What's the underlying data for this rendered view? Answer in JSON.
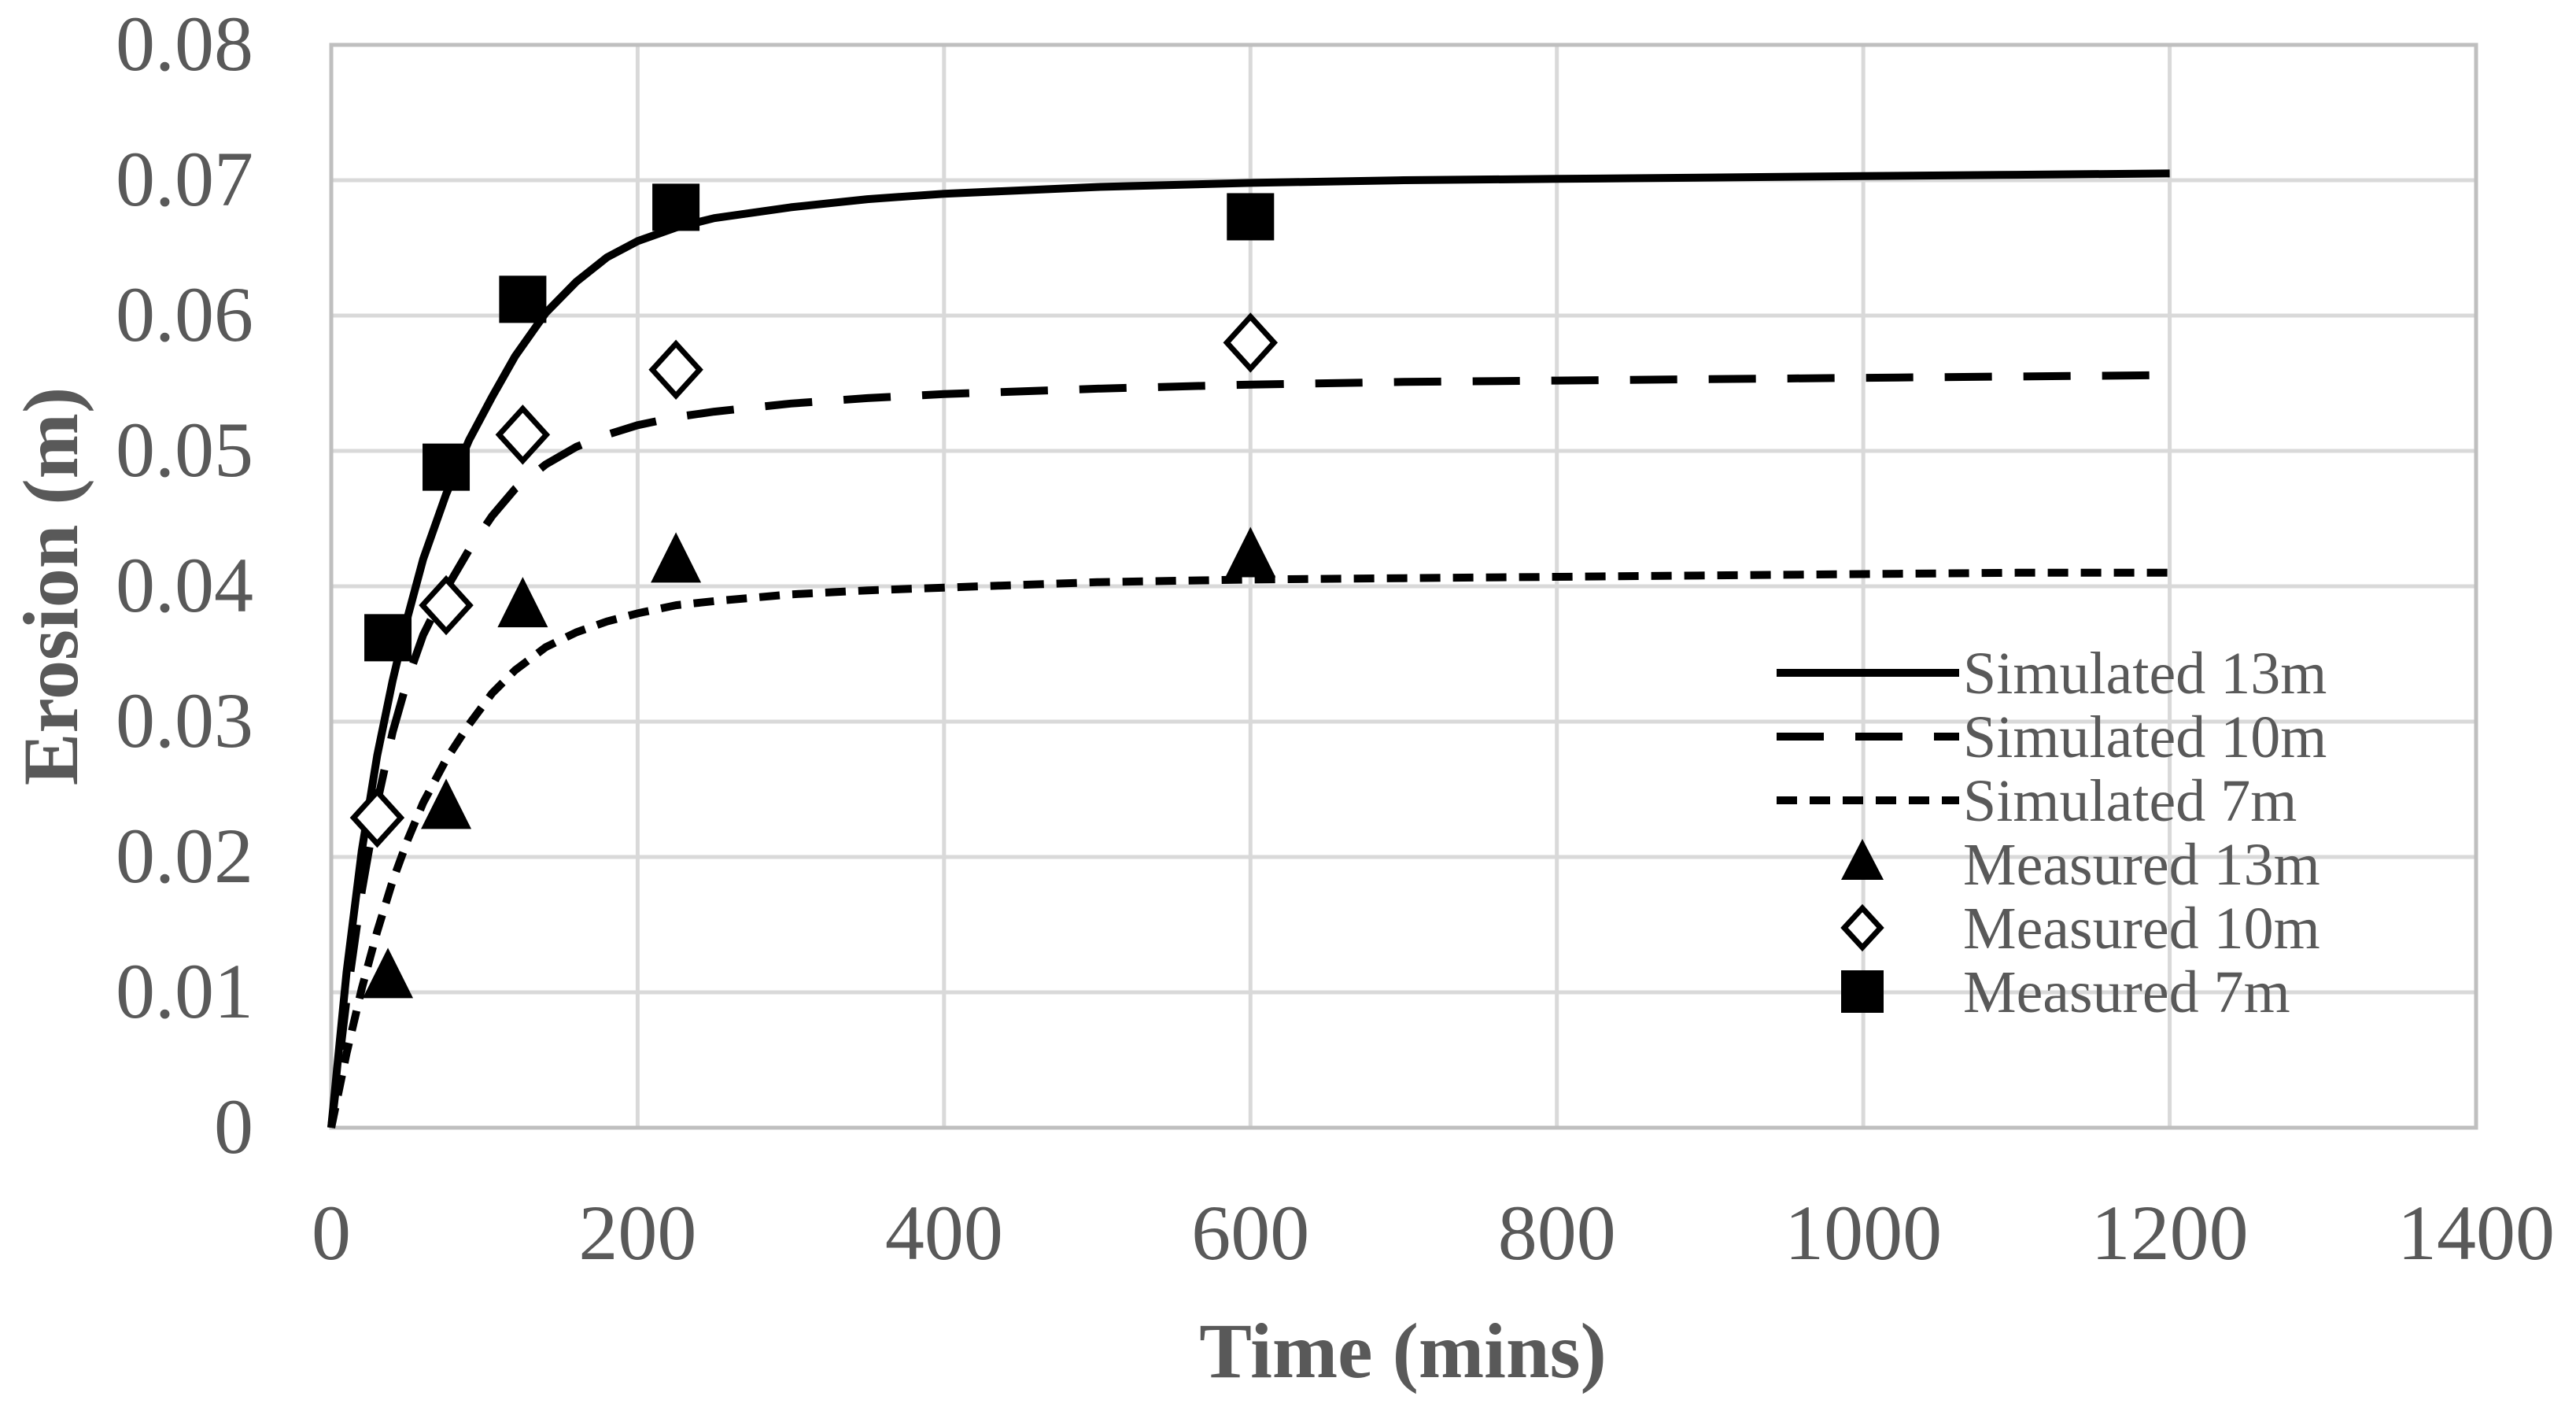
{
  "chart_data": {
    "type": "scatter",
    "title": "",
    "xlabel": "Time (mins)",
    "ylabel": "Erosion (m)",
    "xlim": [
      0,
      1400
    ],
    "ylim": [
      0,
      0.08
    ],
    "xticks": [
      0,
      200,
      400,
      600,
      800,
      1000,
      1200,
      1400
    ],
    "yticks": [
      0,
      0.01,
      0.02,
      0.03,
      0.04,
      0.05,
      0.06,
      0.07,
      0.08
    ],
    "xtick_labels": [
      "0",
      "200",
      "400",
      "600",
      "800",
      "1000",
      "1200",
      "1400"
    ],
    "ytick_labels": [
      "0",
      "0.01",
      "0.02",
      "0.03",
      "0.04",
      "0.05",
      "0.06",
      "0.07",
      "0.08"
    ],
    "grid": true,
    "legend_position": "right",
    "series": [
      {
        "name": "Simulated 13m",
        "kind": "line",
        "dash": "solid",
        "x": [
          0,
          10,
          20,
          30,
          40,
          50,
          60,
          75,
          90,
          105,
          120,
          140,
          160,
          180,
          200,
          225,
          250,
          300,
          350,
          400,
          500,
          600,
          700,
          800,
          900,
          1000,
          1100,
          1200
        ],
        "values": [
          0,
          0.0115,
          0.0205,
          0.0275,
          0.033,
          0.0378,
          0.042,
          0.0468,
          0.0508,
          0.054,
          0.057,
          0.0602,
          0.0625,
          0.0643,
          0.0655,
          0.0665,
          0.0672,
          0.068,
          0.0686,
          0.069,
          0.0695,
          0.0698,
          0.07,
          0.0701,
          0.0702,
          0.0703,
          0.0704,
          0.0705
        ]
      },
      {
        "name": "Simulated 10m",
        "kind": "line",
        "dash": "long",
        "x": [
          0,
          10,
          20,
          30,
          40,
          50,
          60,
          75,
          90,
          105,
          120,
          140,
          160,
          180,
          200,
          225,
          250,
          300,
          350,
          400,
          500,
          600,
          700,
          800,
          900,
          1000,
          1100,
          1200
        ],
        "values": [
          0,
          0.0095,
          0.0175,
          0.024,
          0.0292,
          0.0332,
          0.0364,
          0.0398,
          0.0427,
          0.0452,
          0.0472,
          0.049,
          0.0503,
          0.0512,
          0.0519,
          0.0525,
          0.0529,
          0.0535,
          0.0539,
          0.0542,
          0.0546,
          0.0549,
          0.0551,
          0.0552,
          0.0553,
          0.0554,
          0.0555,
          0.0556
        ]
      },
      {
        "name": "Simulated 7m",
        "kind": "line",
        "dash": "short",
        "x": [
          0,
          10,
          20,
          30,
          40,
          50,
          60,
          75,
          90,
          105,
          120,
          140,
          160,
          180,
          200,
          225,
          250,
          300,
          350,
          400,
          500,
          600,
          700,
          800,
          900,
          1000,
          1100,
          1200
        ],
        "values": [
          0,
          0.0055,
          0.0103,
          0.0145,
          0.0182,
          0.0213,
          0.024,
          0.0272,
          0.0298,
          0.0321,
          0.0338,
          0.0355,
          0.0366,
          0.0374,
          0.038,
          0.0386,
          0.0389,
          0.0394,
          0.0397,
          0.0399,
          0.0403,
          0.0405,
          0.0406,
          0.0407,
          0.0408,
          0.0409,
          0.041,
          0.041
        ]
      },
      {
        "name": "Measured 13m",
        "kind": "marker",
        "marker": "triangle",
        "x": [
          37,
          75,
          125,
          225,
          600
        ],
        "values": [
          0.0112,
          0.0237,
          0.0386,
          0.0419,
          0.0423
        ]
      },
      {
        "name": "Measured 10m",
        "kind": "marker",
        "marker": "diamond",
        "x": [
          30,
          75,
          125,
          225,
          600
        ],
        "values": [
          0.0229,
          0.0386,
          0.0512,
          0.056,
          0.058
        ]
      },
      {
        "name": "Measured 7m",
        "kind": "marker",
        "marker": "square",
        "x": [
          37,
          75,
          125,
          225,
          600
        ],
        "values": [
          0.0362,
          0.0488,
          0.0612,
          0.068,
          0.0673
        ]
      }
    ]
  }
}
